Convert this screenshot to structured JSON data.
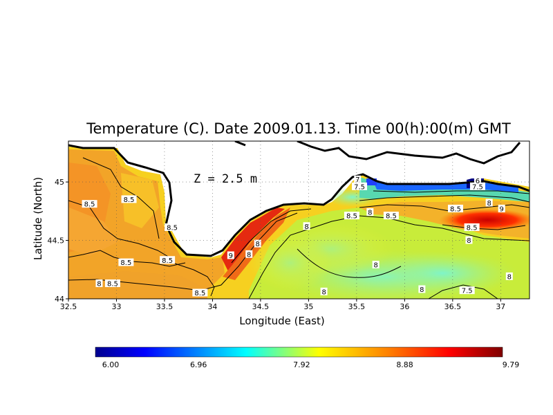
{
  "chart_data": {
    "type": "heatmap",
    "title": "Temperature (C). Date 2009.01.13. Time 00(h):00(m) GMT",
    "xlabel": "Longitude (East)",
    "ylabel": "Latitude (North)",
    "xlim": [
      32.5,
      37.3
    ],
    "ylim": [
      44.0,
      45.35
    ],
    "x_ticks": [
      "32.5",
      "33",
      "33.5",
      "34",
      "34.5",
      "35",
      "35.5",
      "36",
      "36.5",
      "37"
    ],
    "y_ticks": [
      "44",
      "44.5",
      "45"
    ],
    "grid": true,
    "annotation": "Z = 2.5 m",
    "colorbar": {
      "min": 6.0,
      "max": 9.79,
      "tick_labels": [
        "6.00",
        "6.96",
        "7.92",
        "8.88",
        "9.79"
      ]
    },
    "contour_labels": [
      {
        "text": "8.5",
        "lon": 32.72,
        "lat": 44.81
      },
      {
        "text": "8.5",
        "lon": 33.13,
        "lat": 44.85
      },
      {
        "text": "8.5",
        "lon": 33.58,
        "lat": 44.61
      },
      {
        "text": "8.5",
        "lon": 33.1,
        "lat": 44.31
      },
      {
        "text": "8.5",
        "lon": 33.53,
        "lat": 44.33
      },
      {
        "text": "8.5",
        "lon": 32.96,
        "lat": 44.13
      },
      {
        "text": "8",
        "lon": 32.82,
        "lat": 44.13
      },
      {
        "text": "8.5",
        "lon": 33.87,
        "lat": 44.05
      },
      {
        "text": "9",
        "lon": 34.19,
        "lat": 44.37
      },
      {
        "text": "8",
        "lon": 34.38,
        "lat": 44.38
      },
      {
        "text": "8",
        "lon": 34.47,
        "lat": 44.47
      },
      {
        "text": "8",
        "lon": 34.98,
        "lat": 44.62
      },
      {
        "text": "8",
        "lon": 35.16,
        "lat": 44.06
      },
      {
        "text": "8",
        "lon": 35.7,
        "lat": 44.29
      },
      {
        "text": "8",
        "lon": 35.64,
        "lat": 44.74
      },
      {
        "text": "8.5",
        "lon": 35.45,
        "lat": 44.71
      },
      {
        "text": "8.5",
        "lon": 35.86,
        "lat": 44.71
      },
      {
        "text": "7.5",
        "lon": 35.53,
        "lat": 44.96
      },
      {
        "text": "7",
        "lon": 35.51,
        "lat": 45.02
      },
      {
        "text": "7.5",
        "lon": 36.76,
        "lat": 44.96
      },
      {
        "text": "6",
        "lon": 36.76,
        "lat": 45.01
      },
      {
        "text": "8",
        "lon": 36.88,
        "lat": 44.82
      },
      {
        "text": "8.5",
        "lon": 36.53,
        "lat": 44.77
      },
      {
        "text": "9",
        "lon": 37.01,
        "lat": 44.77
      },
      {
        "text": "8.5",
        "lon": 36.7,
        "lat": 44.61
      },
      {
        "text": "8",
        "lon": 36.67,
        "lat": 44.5
      },
      {
        "text": "8",
        "lon": 37.09,
        "lat": 44.19
      },
      {
        "text": "7.5",
        "lon": 36.65,
        "lat": 44.07
      },
      {
        "text": "8",
        "lon": 36.18,
        "lat": 44.08
      }
    ],
    "colors": {
      "cold": "#00008f",
      "cool": "#00ffff",
      "mid": "#ffff00",
      "warm": "#ff7a00",
      "hot": "#7f0000"
    }
  }
}
